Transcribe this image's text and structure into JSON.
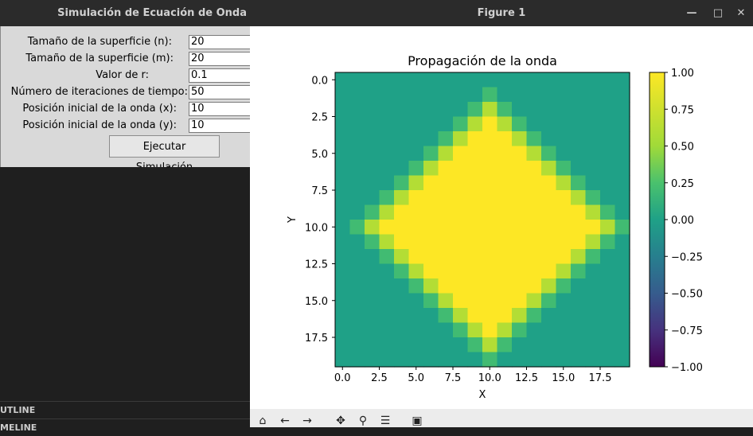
{
  "tk_window": {
    "title": "Simulación de Ecuación de Onda",
    "fields": [
      {
        "label": "Tamaño de la superficie (n):",
        "value": "20"
      },
      {
        "label": "Tamaño de la superficie (m):",
        "value": "20"
      },
      {
        "label": "Valor de r:",
        "value": "0.1"
      },
      {
        "label": "Número de iteraciones de tiempo:",
        "value": "50"
      },
      {
        "label": "Posición inicial de la onda (x):",
        "value": "10"
      },
      {
        "label": "Posición inicial de la onda (y):",
        "value": "10"
      }
    ],
    "run_button": "Ejecutar Simulación"
  },
  "ide_panel": {
    "sections": [
      "UTLINE",
      "MELINE"
    ]
  },
  "figure_window": {
    "title": "Figure 1",
    "buttons": {
      "minimize": "—",
      "maximize": "□",
      "close": "✕"
    },
    "toolbar_icons": [
      "home-icon",
      "back-icon",
      "forward-icon",
      "pan-icon",
      "zoom-icon",
      "configure-icon",
      "save-icon"
    ]
  },
  "chart_data": {
    "type": "heatmap",
    "title": "Propagación de la onda",
    "xlabel": "X",
    "ylabel": "Y",
    "xlim": [
      -0.5,
      19.5
    ],
    "ylim": [
      19.5,
      -0.5
    ],
    "xticks": [
      "0.0",
      "2.5",
      "5.0",
      "7.5",
      "10.0",
      "12.5",
      "15.0",
      "17.5"
    ],
    "yticks": [
      "0.0",
      "2.5",
      "5.0",
      "7.5",
      "10.0",
      "12.5",
      "15.0",
      "17.5"
    ],
    "colorbar": {
      "min": -1.0,
      "max": 1.0,
      "ticks": [
        "1.00",
        "0.75",
        "0.50",
        "0.25",
        "0.00",
        "−0.25",
        "−0.50",
        "−0.75",
        "−1.00"
      ],
      "colormap": "viridis"
    },
    "rows": 20,
    "cols": 20,
    "center": [
      10,
      10
    ],
    "saturated_radius": 7,
    "falloff_width": 2.5,
    "background_value": 0.0
  },
  "colors": {
    "viridis_low": "#440154",
    "viridis_mid": "#21918c",
    "viridis_high": "#fde725"
  }
}
